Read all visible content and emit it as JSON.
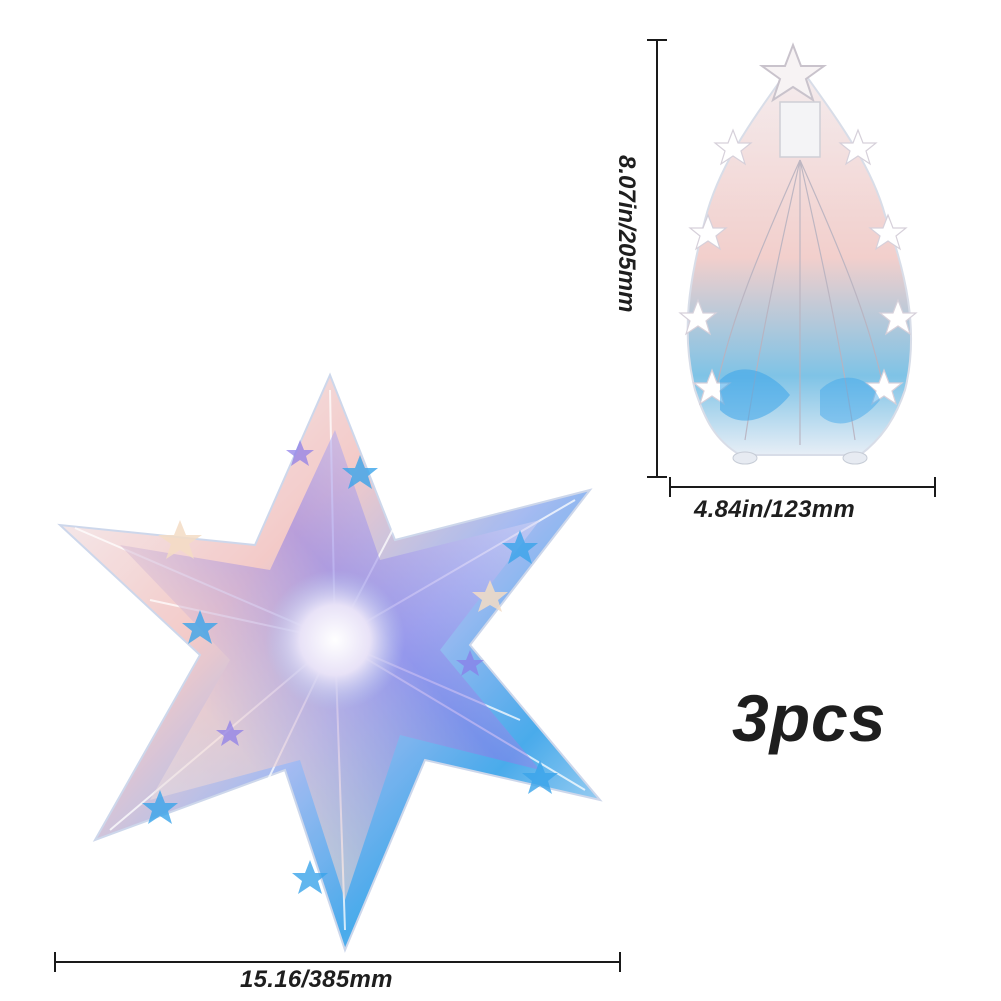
{
  "product": {
    "quantity_label": "3pcs"
  },
  "dimensions": {
    "folded_height": "8.07in/205mm",
    "folded_width": "4.84in/123mm",
    "open_width": "15.16/385mm"
  },
  "colors": {
    "text": "#1e1e1e",
    "dimension_line": "#1a1a1a",
    "iridescent_blue": "#3aa4ea",
    "iridescent_violet": "#8a7be8",
    "iridescent_pink": "#f2c6c4",
    "iridescent_pearl": "#eef2f8"
  },
  "images": {
    "open_star": "iridescent-star-decoration-open",
    "folded_star": "iridescent-star-decoration-folded"
  }
}
